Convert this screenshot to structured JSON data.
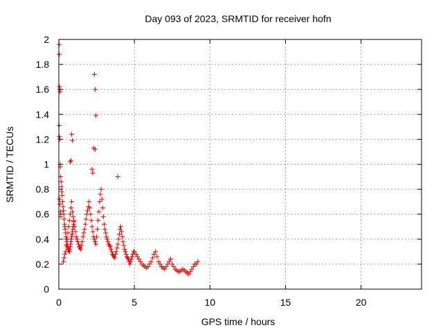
{
  "chart_data": {
    "type": "scatter",
    "title": "Day 093 of 2023, SRMTID for receiver hofn",
    "xlabel": "GPS time / hours",
    "ylabel": "SRMTID / TECUs",
    "xlim": [
      0,
      24
    ],
    "ylim": [
      0,
      2
    ],
    "xticks": [
      0,
      5,
      10,
      15,
      20
    ],
    "yticks": [
      0,
      0.2,
      0.4,
      0.6,
      0.8,
      1,
      1.2,
      1.4,
      1.6,
      1.8,
      2
    ],
    "grid": true,
    "marker": "+",
    "color": "#e00000",
    "series": [
      {
        "name": "SRMTID",
        "x": [
          0.02,
          0.03,
          0.05,
          0.06,
          0.08,
          0.02,
          0.04,
          0.07,
          0.09,
          0.1,
          0.05,
          0.08,
          0.11,
          0.13,
          0.12,
          0.15,
          0.18,
          0.2,
          0.22,
          0.25,
          0.28,
          0.3,
          0.33,
          0.35,
          0.38,
          0.4,
          0.42,
          0.45,
          0.48,
          0.5,
          0.52,
          0.55,
          0.58,
          0.6,
          0.62,
          0.65,
          0.68,
          0.7,
          0.72,
          0.75,
          0.78,
          0.8,
          0.82,
          0.85,
          0.88,
          0.9,
          0.92,
          0.95,
          0.98,
          1.0,
          0.3,
          0.35,
          0.4,
          0.45,
          0.5,
          0.55,
          0.6,
          0.65,
          0.7,
          0.75,
          0.8,
          0.85,
          0.9,
          0.95,
          1.0,
          1.05,
          1.1,
          1.15,
          1.2,
          1.25,
          1.3,
          1.35,
          1.4,
          1.45,
          1.5,
          1.55,
          1.6,
          1.65,
          1.7,
          1.75,
          1.8,
          1.85,
          1.9,
          1.95,
          2.0,
          2.05,
          2.1,
          2.15,
          2.2,
          2.25,
          2.3,
          2.35,
          2.4,
          2.45,
          2.5,
          2.55,
          2.6,
          2.65,
          2.7,
          2.75,
          2.8,
          2.85,
          2.9,
          2.95,
          3.0,
          3.05,
          3.1,
          3.15,
          3.2,
          3.25,
          3.3,
          3.35,
          3.4,
          3.45,
          3.5,
          3.55,
          3.6,
          3.65,
          3.7,
          3.75,
          3.8,
          3.85,
          3.9,
          3.95,
          4.0,
          4.05,
          4.1,
          4.15,
          4.2,
          4.25,
          4.3,
          4.35,
          4.4,
          4.45,
          4.5,
          4.55,
          4.6,
          4.65,
          4.7,
          4.75,
          4.8,
          4.85,
          4.9,
          4.95,
          5.0,
          5.1,
          5.2,
          5.3,
          5.4,
          5.5,
          5.6,
          5.7,
          5.8,
          5.9,
          6.0,
          6.1,
          6.2,
          6.3,
          6.4,
          6.5,
          6.6,
          6.7,
          6.8,
          6.9,
          7.0,
          7.1,
          7.2,
          7.3,
          7.4,
          7.5,
          7.6,
          7.7,
          7.8,
          7.9,
          8.0,
          8.1,
          8.2,
          8.3,
          8.4,
          8.5,
          8.6,
          8.7,
          8.8,
          8.9,
          9.0,
          9.1,
          9.2,
          2.35,
          2.4,
          2.45,
          2.4,
          2.3,
          2.2,
          2.25,
          3.9,
          0.85,
          0.9,
          0.75,
          0.8
        ],
        "y": [
          1.96,
          1.88,
          1.62,
          1.6,
          1.58,
          1.31,
          1.22,
          1.2,
          1.0,
          0.98,
          0.72,
          0.68,
          0.62,
          0.58,
          0.9,
          0.86,
          0.82,
          0.78,
          0.75,
          0.7,
          0.66,
          0.63,
          0.6,
          0.56,
          0.52,
          0.5,
          0.48,
          0.45,
          0.42,
          0.4,
          0.38,
          0.36,
          0.34,
          0.33,
          0.32,
          0.31,
          0.3,
          0.3,
          0.32,
          0.34,
          0.36,
          0.38,
          0.4,
          0.42,
          0.44,
          0.46,
          0.48,
          0.5,
          0.52,
          0.54,
          0.22,
          0.25,
          0.28,
          0.3,
          0.35,
          0.4,
          0.45,
          0.5,
          0.55,
          0.6,
          0.65,
          0.7,
          0.62,
          0.58,
          0.55,
          0.5,
          0.46,
          0.42,
          0.4,
          0.38,
          0.36,
          0.34,
          0.33,
          0.32,
          0.35,
          0.38,
          0.42,
          0.45,
          0.48,
          0.52,
          0.56,
          0.6,
          0.63,
          0.66,
          0.7,
          0.65,
          0.6,
          0.55,
          0.5,
          0.46,
          0.42,
          0.4,
          0.38,
          0.36,
          0.42,
          0.48,
          0.55,
          0.62,
          0.7,
          0.76,
          0.8,
          0.72,
          0.65,
          0.58,
          0.52,
          0.48,
          0.45,
          0.42,
          0.4,
          0.38,
          0.36,
          0.35,
          0.34,
          0.32,
          0.3,
          0.28,
          0.27,
          0.26,
          0.25,
          0.28,
          0.3,
          0.33,
          0.36,
          0.4,
          0.44,
          0.48,
          0.5,
          0.46,
          0.42,
          0.38,
          0.35,
          0.32,
          0.3,
          0.28,
          0.26,
          0.25,
          0.24,
          0.22,
          0.2,
          0.22,
          0.24,
          0.26,
          0.28,
          0.3,
          0.3,
          0.28,
          0.26,
          0.24,
          0.22,
          0.2,
          0.19,
          0.18,
          0.17,
          0.18,
          0.2,
          0.22,
          0.25,
          0.28,
          0.3,
          0.26,
          0.22,
          0.2,
          0.18,
          0.17,
          0.16,
          0.18,
          0.2,
          0.22,
          0.24,
          0.2,
          0.18,
          0.16,
          0.15,
          0.14,
          0.14,
          0.15,
          0.16,
          0.15,
          0.14,
          0.13,
          0.12,
          0.14,
          0.16,
          0.18,
          0.2,
          0.2,
          0.22,
          1.72,
          1.6,
          1.39,
          1.12,
          1.13,
          0.96,
          0.93,
          0.9,
          1.24,
          1.19,
          1.02,
          1.03
        ]
      }
    ]
  }
}
